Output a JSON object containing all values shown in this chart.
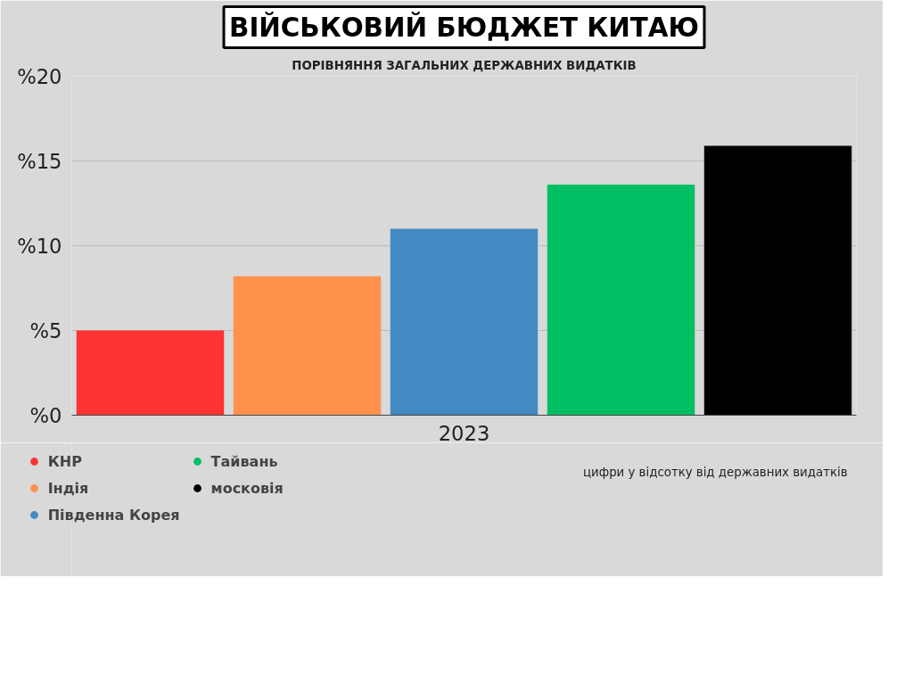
{
  "chart_data": {
    "type": "bar",
    "title": "ВІЙСЬКОВИЙ БЮДЖЕТ КИТАЮ",
    "subtitle": "ПОРІВНЯННЯ ЗАГАЛЬНИХ ДЕРЖАВНИХ ВИДАТКІВ",
    "categories": [
      "2023"
    ],
    "series": [
      {
        "name": "КНР",
        "color": "#ff3333",
        "values": [
          5.0
        ]
      },
      {
        "name": "Індія",
        "color": "#ff914d",
        "values": [
          8.2
        ]
      },
      {
        "name": "Південна Корея",
        "color": "#448ac2",
        "values": [
          11.0
        ]
      },
      {
        "name": "Тайвань",
        "color": "#00bf63",
        "values": [
          13.6
        ]
      },
      {
        "name": "московія",
        "color": "#000000",
        "values": [
          15.9
        ]
      }
    ],
    "ylim": [
      0,
      20
    ],
    "yticks": [
      {
        "value": 0,
        "label": "%0"
      },
      {
        "value": 5,
        "label": "%5"
      },
      {
        "value": 10,
        "label": "%10"
      },
      {
        "value": 15,
        "label": "%15"
      },
      {
        "value": 20,
        "label": "%20"
      }
    ],
    "grid": "y",
    "legend": "bottom left",
    "annotations": [
      "цифри у відсотку від державних видатків"
    ]
  }
}
